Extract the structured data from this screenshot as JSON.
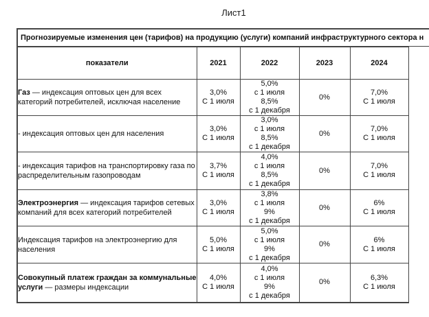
{
  "sheet_title": "Лист1",
  "table": {
    "title": "Прогнозируемые изменения цен (тарифов) на продукцию (услуги) компаний инфраструктурного сектора н",
    "columns": [
      "показатели",
      "2021",
      "2022",
      "2023",
      "2024"
    ],
    "rows": [
      {
        "indicator_bold": "Газ",
        "indicator_rest": " — индексация оптовых цен для всех категорий потребителей, исключая население",
        "cells": [
          [
            "3,0%",
            "С 1 июля"
          ],
          [
            "5,0%",
            "с 1 июля",
            "8,5%",
            "с 1 декабря"
          ],
          [
            "0%"
          ],
          [
            "7,0%",
            "С 1 июля"
          ]
        ]
      },
      {
        "indicator_bold": "",
        "indicator_rest": "- индексация оптовых цен для населения",
        "cells": [
          [
            "3,0%",
            "С 1 июля"
          ],
          [
            "3,0%",
            "с 1 июля",
            "8,5%",
            "с 1 декабря"
          ],
          [
            "0%"
          ],
          [
            "7,0%",
            "С 1 июля"
          ]
        ]
      },
      {
        "indicator_bold": "",
        "indicator_rest": "- индексация тарифов на транспортировку газа по распределительным газопроводам",
        "cells": [
          [
            "3,7%",
            "С 1 июля"
          ],
          [
            "4,0%",
            "с 1 июля",
            "8,5%",
            "с 1 декабря"
          ],
          [
            "0%"
          ],
          [
            "7,0%",
            "С 1 июля"
          ]
        ]
      },
      {
        "indicator_bold": "Электроэнергия",
        "indicator_rest": " — индексация тарифов сетевых компаний для всех категорий потребителей",
        "cells": [
          [
            "3,0%",
            "С 1 июля"
          ],
          [
            "3,8%",
            "с 1 июля",
            "9%",
            "с 1 декабря"
          ],
          [
            "0%"
          ],
          [
            "6%",
            "С 1 июля"
          ]
        ]
      },
      {
        "indicator_bold": "",
        "indicator_rest": "Индексация тарифов на электроэнергию для населения",
        "cells": [
          [
            "5,0%",
            "С 1 июля"
          ],
          [
            "5,0%",
            "с 1 июля",
            "9%",
            "с 1 декабря"
          ],
          [
            "0%"
          ],
          [
            "6%",
            "С 1 июля"
          ]
        ]
      },
      {
        "indicator_bold": "Совокупный платеж граждан за коммунальные услуги",
        "indicator_rest": " — размеры индексации",
        "cells": [
          [
            "4,0%",
            "С 1 июля"
          ],
          [
            "4,0%",
            "с 1 июля",
            "9%",
            "с 1 декабря"
          ],
          [
            "0%"
          ],
          [
            "6,3%",
            "С 1 июля"
          ]
        ]
      }
    ]
  },
  "colors": {
    "border": "#444444",
    "text": "#111111",
    "background": "#ffffff"
  }
}
